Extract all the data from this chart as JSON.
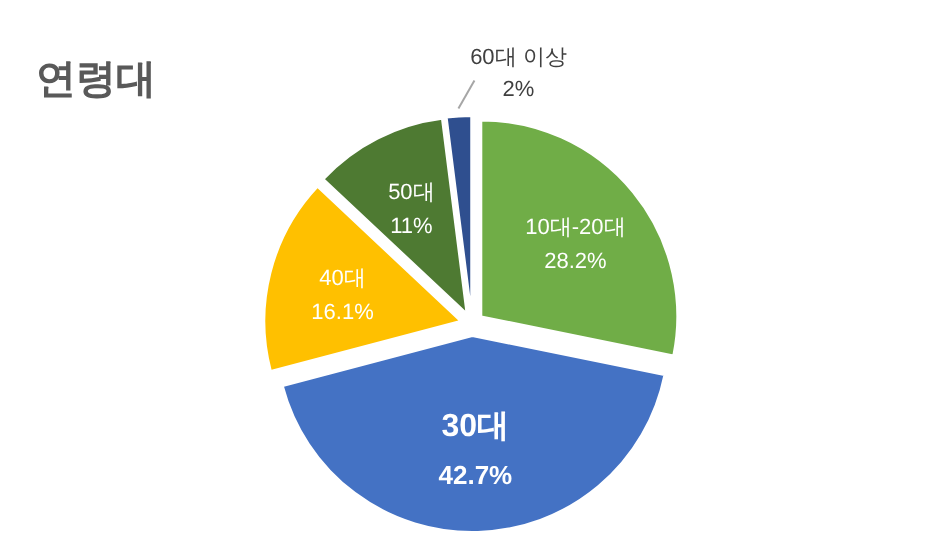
{
  "chart_data": {
    "type": "pie",
    "title": "연령대",
    "categories": [
      "10대-20대",
      "30대",
      "40대",
      "50대",
      "60대 이상"
    ],
    "values": [
      28.2,
      42.7,
      16.1,
      11,
      2
    ],
    "value_labels": [
      "28.2%",
      "42.7%",
      "16.1%",
      "11%",
      "2%"
    ],
    "colors": [
      "#70ad47",
      "#4472c4",
      "#ffc000",
      "#4e7a32",
      "#2f4f8f"
    ]
  }
}
